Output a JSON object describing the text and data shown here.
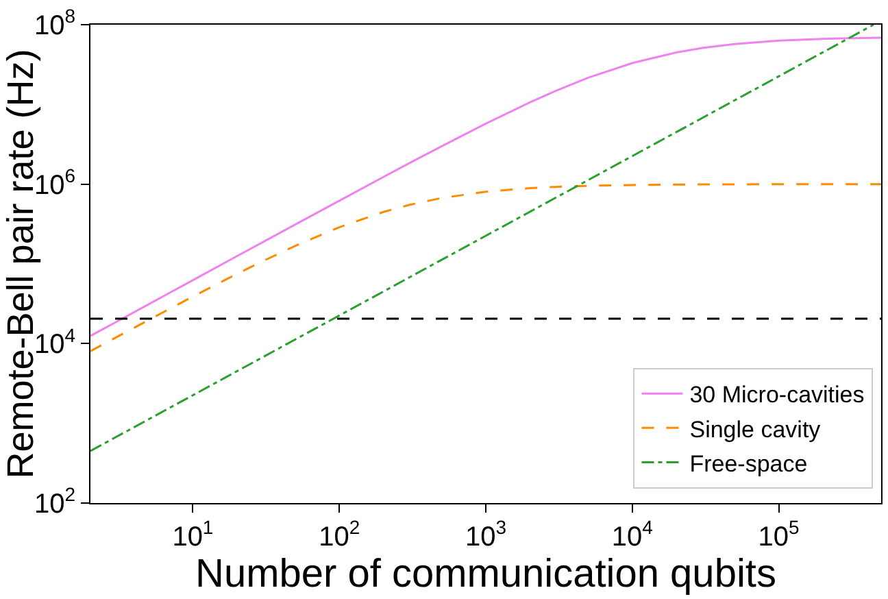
{
  "chart_data": {
    "type": "line",
    "xlabel": "Number of communication qubits",
    "ylabel": "Remote-Bell pair rate (Hz)",
    "log": "xy",
    "xlim": [
      2,
      500000
    ],
    "ylim": [
      100,
      100000000
    ],
    "xticks": [
      {
        "value": 10,
        "label": "10$^{1}$"
      },
      {
        "value": 100,
        "label": "10$^{2}$"
      },
      {
        "value": 1000,
        "label": "10$^{3}$"
      },
      {
        "value": 10000,
        "label": "10$^{4}$"
      },
      {
        "value": 100000,
        "label": "10$^{5}$"
      }
    ],
    "yticks": [
      {
        "value": 100,
        "label": "10$^{2}$"
      },
      {
        "value": 10000,
        "label": "10$^{4}$"
      },
      {
        "value": 1000000,
        "label": "10$^{6}$"
      },
      {
        "value": 100000000,
        "label": "10$^{8}$"
      }
    ],
    "x": [
      2,
      3,
      5,
      10,
      20,
      30,
      50,
      100,
      200,
      300,
      500,
      1000,
      2000,
      3000,
      5000,
      10000,
      20000,
      30000,
      50000,
      100000,
      200000,
      300000,
      500000
    ],
    "series": [
      {
        "name": "30 Micro-cavities",
        "color": "#ee82ee",
        "line_style": "solid",
        "values": [
          12500,
          18700,
          31200,
          62400,
          125000,
          187000,
          311000,
          619000,
          1230000,
          1830000,
          2990000,
          5740000,
          10600000,
          14800000,
          21600000,
          33000000,
          44900000,
          51000000,
          57200000,
          63000000,
          66300000,
          67500000,
          68500000
        ]
      },
      {
        "name": "Single cavity",
        "color": "#ff8c00",
        "line_style": "dashed",
        "values": [
          8040,
          12000,
          19800,
          38900,
          74900,
          108000,
          168000,
          288000,
          448000,
          549000,
          670000,
          802000,
          890000,
          924000,
          953000,
          976000,
          988000,
          992000,
          995000,
          998000,
          999000,
          1000000,
          1000000
        ]
      },
      {
        "name": "Free-space",
        "color": "#2ca02c",
        "line_style": "dashdot",
        "x": [
          2,
          10,
          100,
          1000,
          10000,
          100000,
          444000
        ],
        "values": [
          450,
          2250,
          22500,
          225000,
          2250000,
          22500000,
          100000000
        ]
      }
    ],
    "ref_lines": [
      {
        "axis": "y",
        "value": 20500,
        "color": "#000000",
        "line_style": "dashed"
      }
    ],
    "grid": false,
    "legend": "bottom right"
  }
}
